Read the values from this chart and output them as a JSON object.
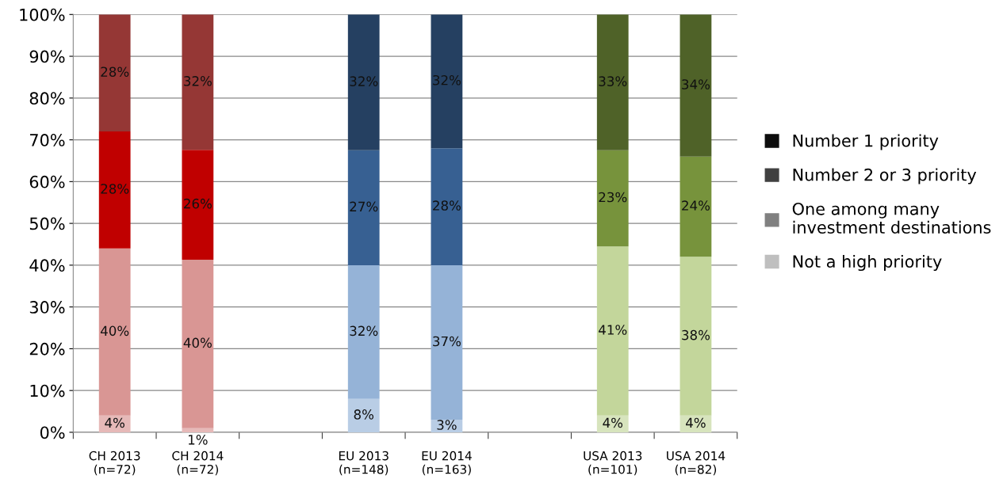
{
  "chart_data": {
    "type": "bar",
    "stacked": true,
    "categories": [
      "CH 2013\n(n=72)",
      "CH 2014\n(n=72)",
      null,
      "EU 2013\n(n=148)",
      "EU 2014\n(n=163)",
      null,
      "USA 2013\n(n=101)",
      "USA 2014\n(n=82)"
    ],
    "series": [
      {
        "name": "Not a high priority",
        "color": "#bfbfbf",
        "colors": [
          "#e6b9b8",
          "#e6b9b8",
          null,
          "#b9cde5",
          "#b9cde5",
          null,
          "#d7e4bd",
          "#d7e4bd"
        ],
        "values": [
          4,
          1,
          null,
          8,
          3,
          null,
          4,
          4
        ],
        "value_labels": [
          "4%",
          "1%",
          null,
          "8%",
          "3%",
          null,
          "4%",
          "4%"
        ]
      },
      {
        "name": "One among many\ninvestment destinations",
        "color": "#808080",
        "colors": [
          "#d99694",
          "#d99694",
          null,
          "#95b3d7",
          "#95b3d7",
          null,
          "#c3d69b",
          "#c3d69b"
        ],
        "values": [
          40,
          40.3,
          null,
          32,
          37,
          null,
          40.5,
          38
        ],
        "value_labels": [
          "40%",
          "40%",
          null,
          "32%",
          "37%",
          null,
          "41%",
          "38%"
        ]
      },
      {
        "name": "Number 2 or 3 priority",
        "color": "#404040",
        "colors": [
          "#c00000",
          "#c00000",
          null,
          "#376092",
          "#376092",
          null,
          "#77933c",
          "#77933c"
        ],
        "values": [
          28,
          26.3,
          null,
          27.5,
          28,
          null,
          23,
          24
        ],
        "value_labels": [
          "28%",
          "26%",
          null,
          "27%",
          "28%",
          null,
          "23%",
          "24%"
        ]
      },
      {
        "name": "Number 1 priority",
        "color": "#0d0d0d",
        "colors": [
          "#953735",
          "#953735",
          null,
          "#254061",
          "#254061",
          null,
          "#4f6228",
          "#4f6228"
        ],
        "values": [
          28,
          32.4,
          null,
          32.5,
          32,
          null,
          32.5,
          34
        ],
        "value_labels": [
          "28%",
          "32%",
          null,
          "32%",
          "32%",
          null,
          "33%",
          "34%"
        ]
      }
    ],
    "ylim": [
      0,
      100
    ],
    "yticks": [
      {
        "value": 0,
        "label": "0%"
      },
      {
        "value": 10,
        "label": "10%"
      },
      {
        "value": 20,
        "label": "20%"
      },
      {
        "value": 30,
        "label": "30%"
      },
      {
        "value": 40,
        "label": "40%"
      },
      {
        "value": 50,
        "label": "50%"
      },
      {
        "value": 60,
        "label": "60%"
      },
      {
        "value": 70,
        "label": "70%"
      },
      {
        "value": 80,
        "label": "80%"
      },
      {
        "value": 90,
        "label": "90%"
      },
      {
        "value": 100,
        "label": "100%"
      }
    ],
    "grid": "y",
    "legend": "right"
  }
}
